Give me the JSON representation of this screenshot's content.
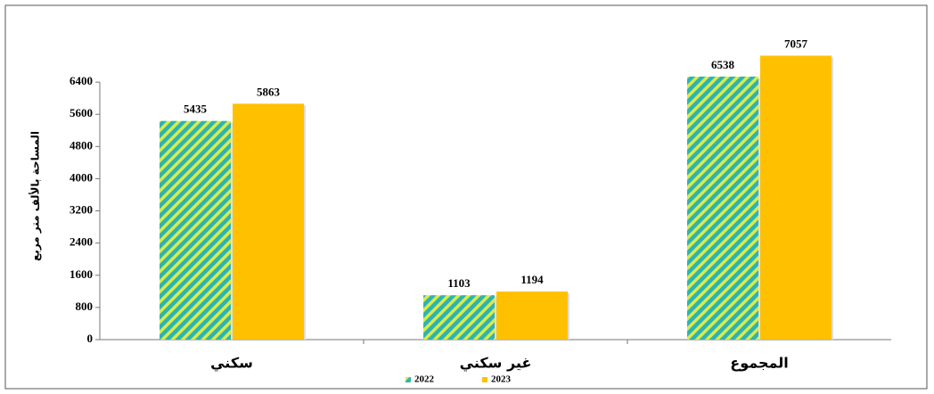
{
  "chart_data": {
    "type": "bar",
    "y_label": "المساحة بالألف متر مربع",
    "categories": [
      "سكني",
      "غير سكني",
      "المجموع"
    ],
    "series": [
      {
        "name": "2022",
        "color": "#2fb3b0",
        "hatch_color": "#d8ec4c",
        "values": [
          5435,
          1103,
          6538
        ]
      },
      {
        "name": "2023",
        "color": "#ffc000",
        "values": [
          5863,
          1194,
          7057
        ]
      }
    ],
    "ylim": [
      0,
      7200
    ],
    "yticks": [
      0,
      800,
      1600,
      2400,
      3200,
      4000,
      4800,
      5600,
      6400
    ],
    "legend": "bottom"
  }
}
